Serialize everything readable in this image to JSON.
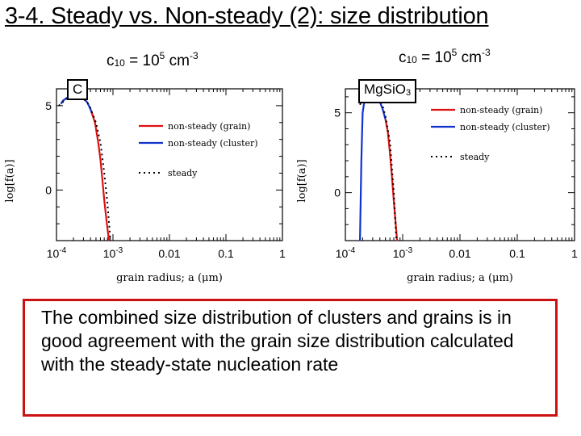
{
  "title": "3-4. Steady vs. Non-steady (2): size distribution",
  "caption": "The combined size distribution of clusters and grains is in good agreement with the grain size distribution calculated with the steady-state nucleation rate",
  "colors": {
    "grain": "#dd1111",
    "cluster": "#1133cc",
    "steady": "#000000",
    "caption_border": "#cc1111"
  },
  "chart_data": [
    {
      "type": "line",
      "condition": {
        "symbol": "c",
        "subscript": "10",
        "eq": "= 10",
        "exp": "5",
        "unit": " cm",
        "unit_exp": "-3"
      },
      "species_label": {
        "main": "C",
        "sub": ""
      },
      "xlabel": "grain radius; a (μm)",
      "ylabel": "log[f(a)]",
      "x_scale": "log",
      "xlim": [
        0.0001,
        1
      ],
      "ylim": [
        -3,
        6
      ],
      "x_ticks": [
        {
          "v": 0.0001,
          "label": "10",
          "exp": "-4"
        },
        {
          "v": 0.001,
          "label": "10",
          "exp": "-3"
        },
        {
          "v": 0.01,
          "label": "0.01",
          "exp": ""
        },
        {
          "v": 0.1,
          "label": "0.1",
          "exp": ""
        },
        {
          "v": 1,
          "label": "1",
          "exp": ""
        }
      ],
      "y_ticks": [
        {
          "v": 0,
          "label": "0"
        },
        {
          "v": 5,
          "label": "5"
        }
      ],
      "legend": [
        "non-steady (grain)",
        "non-steady (cluster)",
        "steady"
      ],
      "series": [
        {
          "name": "non-steady (cluster)",
          "key": "cluster",
          "x": [
            0.00012,
            0.00013,
            0.00016,
            0.0002,
            0.00025,
            0.0003,
            0.00035,
            0.0004,
            0.00045
          ],
          "y": [
            5.1,
            5.3,
            5.5,
            5.6,
            5.58,
            5.45,
            5.2,
            4.8,
            4.3
          ]
        },
        {
          "name": "non-steady (grain)",
          "key": "grain",
          "x": [
            0.00042,
            0.00048,
            0.00055,
            0.0006,
            0.00065,
            0.0007,
            0.00075,
            0.0008,
            0.00085
          ],
          "y": [
            4.6,
            4.0,
            2.8,
            1.8,
            0.6,
            -0.6,
            -1.5,
            -2.3,
            -3.0
          ]
        },
        {
          "name": "steady",
          "key": "steady",
          "x": [
            0.00011,
            0.00015,
            0.0002,
            0.00025,
            0.0003,
            0.00035,
            0.0004,
            0.0005,
            0.0006,
            0.0007,
            0.0008,
            0.0009
          ],
          "y": [
            5.0,
            5.4,
            5.55,
            5.55,
            5.4,
            5.2,
            4.85,
            4.0,
            2.8,
            1.0,
            -0.8,
            -3.0
          ]
        }
      ]
    },
    {
      "type": "line",
      "condition": {
        "symbol": "c",
        "subscript": "10",
        "eq": "= 10",
        "exp": "5",
        "unit": " cm",
        "unit_exp": "-3"
      },
      "species_label": {
        "main": "Mg",
        "parts": [
          {
            "t": "Mg",
            "s": ""
          },
          {
            "t": "Si",
            "s": ""
          },
          {
            "t": "O",
            "s": "3"
          }
        ]
      },
      "xlabel": "grain radius; a (μm)",
      "ylabel": "log[f(a)]",
      "x_scale": "log",
      "xlim": [
        0.0001,
        1
      ],
      "ylim": [
        -3,
        6.5
      ],
      "x_ticks": [
        {
          "v": 0.0001,
          "label": "10",
          "exp": "-4"
        },
        {
          "v": 0.001,
          "label": "10",
          "exp": "-3"
        },
        {
          "v": 0.01,
          "label": "0.01",
          "exp": ""
        },
        {
          "v": 0.1,
          "label": "0.1",
          "exp": ""
        },
        {
          "v": 1,
          "label": "1",
          "exp": ""
        }
      ],
      "y_ticks": [
        {
          "v": 0,
          "label": "0"
        },
        {
          "v": 5,
          "label": "5"
        }
      ],
      "legend": [
        "non-steady (grain)",
        "non-steady (cluster)",
        "steady"
      ],
      "series": [
        {
          "name": "non-steady (cluster)",
          "key": "cluster",
          "x": [
            0.00018,
            0.00019,
            0.0002,
            0.00022,
            0.00025,
            0.0003,
            0.00035,
            0.0004,
            0.00045,
            0.0005
          ],
          "y": [
            -3.0,
            2.0,
            5.0,
            6.0,
            6.1,
            6.1,
            6.0,
            5.7,
            5.2,
            4.6
          ]
        },
        {
          "name": "non-steady (grain)",
          "key": "grain",
          "x": [
            0.0005,
            0.00055,
            0.0006,
            0.00065,
            0.0007,
            0.00075,
            0.0008
          ],
          "y": [
            4.6,
            3.8,
            2.5,
            1.0,
            -0.5,
            -1.8,
            -3.0
          ]
        },
        {
          "name": "steady",
          "key": "steady",
          "x": [
            0.00018,
            0.0002,
            0.00025,
            0.0003,
            0.00035,
            0.0004,
            0.00045,
            0.0005,
            0.0006,
            0.0007,
            0.00078
          ],
          "y": [
            5.5,
            5.9,
            6.1,
            6.1,
            6.0,
            5.8,
            5.4,
            4.8,
            3.2,
            0.0,
            -3.0
          ]
        }
      ]
    }
  ]
}
